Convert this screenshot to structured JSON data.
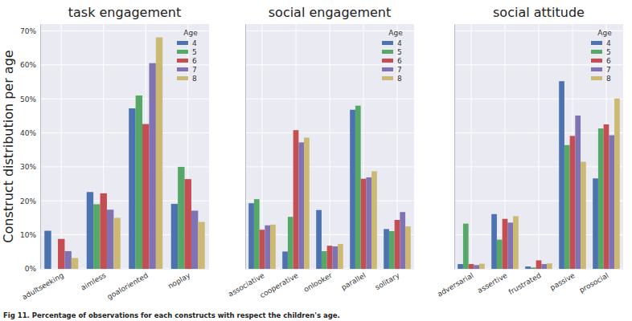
{
  "chart_data": [
    {
      "type": "bar",
      "title": "task engagement",
      "y_label": "Construct distribution per age",
      "categories": [
        "adultseeking",
        "aimless",
        "goaloriented",
        "noplay"
      ],
      "legend_title": "Age",
      "legend": "upper right",
      "grid": true,
      "series": [
        {
          "name": "4",
          "color": "#4c72b0",
          "values": [
            11.2,
            22.6,
            47.2,
            19.1
          ]
        },
        {
          "name": "5",
          "color": "#55a868",
          "values": [
            0,
            19.0,
            51.0,
            30.0
          ]
        },
        {
          "name": "6",
          "color": "#c44e52",
          "values": [
            8.8,
            22.2,
            42.6,
            26.4
          ]
        },
        {
          "name": "7",
          "color": "#8172b2",
          "values": [
            5.2,
            17.4,
            60.5,
            17.1
          ]
        },
        {
          "name": "8",
          "color": "#ccb974",
          "values": [
            3.2,
            15.0,
            68.1,
            13.8
          ]
        }
      ],
      "ylim": [
        0,
        72
      ],
      "yticks": [
        {
          "value": 0,
          "label": "0%"
        },
        {
          "value": 10,
          "label": "10%"
        },
        {
          "value": 20,
          "label": "20%"
        },
        {
          "value": 30,
          "label": "30%"
        },
        {
          "value": 40,
          "label": "40%"
        },
        {
          "value": 50,
          "label": "50%"
        },
        {
          "value": 60,
          "label": "60%"
        },
        {
          "value": 70,
          "label": "70%"
        }
      ]
    },
    {
      "type": "bar",
      "title": "social engagement",
      "categories": [
        "associative",
        "cooperative",
        "onlooker",
        "parallel",
        "solitary"
      ],
      "legend_title": "Age",
      "legend": "upper right",
      "grid": true,
      "tick_labels": "x",
      "series": [
        {
          "name": "4",
          "color": "#4c72b0",
          "values": [
            19.3,
            5.1,
            17.3,
            46.8,
            11.7
          ]
        },
        {
          "name": "5",
          "color": "#55a868",
          "values": [
            20.5,
            15.3,
            5.2,
            48.0,
            11.1
          ]
        },
        {
          "name": "6",
          "color": "#c44e52",
          "values": [
            11.5,
            40.8,
            6.8,
            26.5,
            14.4
          ]
        },
        {
          "name": "7",
          "color": "#8172b2",
          "values": [
            12.8,
            37.2,
            6.6,
            26.9,
            16.7
          ]
        },
        {
          "name": "8",
          "color": "#ccb974",
          "values": [
            13.0,
            38.6,
            7.3,
            28.7,
            12.5
          ]
        }
      ],
      "ylim": [
        0,
        72
      ],
      "yticks": [
        {
          "value": 0,
          "label": "0%"
        },
        {
          "value": 10,
          "label": "10%"
        },
        {
          "value": 20,
          "label": "20%"
        },
        {
          "value": 30,
          "label": "30%"
        },
        {
          "value": 40,
          "label": "40%"
        },
        {
          "value": 50,
          "label": "50%"
        },
        {
          "value": 60,
          "label": "60%"
        },
        {
          "value": 70,
          "label": "70%"
        }
      ]
    },
    {
      "type": "bar",
      "title": "social attitude",
      "categories": [
        "adversarial",
        "assertive",
        "frustrated",
        "passive",
        "prosocial"
      ],
      "legend_title": "Age",
      "legend": "upper right",
      "grid": true,
      "tick_labels": "x",
      "series": [
        {
          "name": "4",
          "color": "#4c72b0",
          "values": [
            1.4,
            16.1,
            0.7,
            55.2,
            26.6
          ]
        },
        {
          "name": "5",
          "color": "#55a868",
          "values": [
            13.3,
            8.6,
            0.4,
            36.4,
            41.3
          ]
        },
        {
          "name": "6",
          "color": "#c44e52",
          "values": [
            1.4,
            14.7,
            2.5,
            39.1,
            42.5
          ]
        },
        {
          "name": "7",
          "color": "#8172b2",
          "values": [
            1.1,
            13.6,
            1.4,
            45.1,
            39.3
          ]
        },
        {
          "name": "8",
          "color": "#ccb974",
          "values": [
            1.5,
            15.5,
            1.6,
            31.5,
            50.1
          ]
        }
      ],
      "ylim": [
        0,
        72
      ],
      "yticks": [
        {
          "value": 0,
          "label": "0%"
        },
        {
          "value": 10,
          "label": "10%"
        },
        {
          "value": 20,
          "label": "20%"
        },
        {
          "value": 30,
          "label": "30%"
        },
        {
          "value": 40,
          "label": "40%"
        },
        {
          "value": 50,
          "label": "50%"
        },
        {
          "value": 60,
          "label": "60%"
        },
        {
          "value": 70,
          "label": "70%"
        }
      ]
    }
  ],
  "caption": "Fig 11. Percentage of observations for each constructs with respect the children's age."
}
